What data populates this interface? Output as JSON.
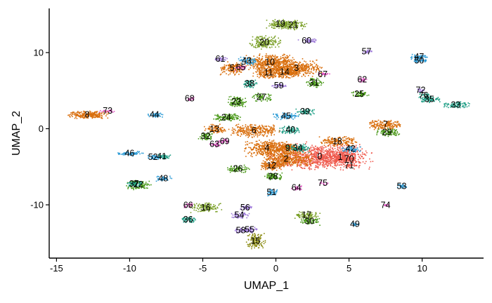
{
  "chart_data": {
    "type": "scatter",
    "xlabel": "UMAP_1",
    "ylabel": "UMAP_2",
    "xlim": [
      -15.5,
      14.2
    ],
    "ylim": [
      -17.0,
      15.8
    ],
    "xticks": [
      -15,
      -10,
      -5,
      0,
      5,
      10
    ],
    "yticks": [
      -10,
      0,
      10
    ],
    "xtick_labels": [
      "-15",
      "-10",
      "-5",
      "0",
      "5",
      "10"
    ],
    "ytick_labels": [
      "-10",
      "0",
      "10"
    ],
    "grid": false,
    "legend": "none",
    "colors": {
      "orange": "#d96f0e",
      "olive": "#7ca12a",
      "green": "#4c9a1c",
      "teal": "#1f9e85",
      "blue": "#2b9bd6",
      "purple": "#9b76d8",
      "magenta": "#e05ac4",
      "red": "#ef5a4e",
      "darkolive": "#8a8a10"
    },
    "clusters": [
      {
        "label": "0",
        "x": 3.0,
        "y": -3.6,
        "color": "red",
        "rx": 3.3,
        "ry": 1.6,
        "n": 900
      },
      {
        "label": "1",
        "x": 4.4,
        "y": -3.7,
        "color": "red",
        "rx": 1.1,
        "ry": 0.8,
        "n": 200
      },
      {
        "label": "2",
        "x": 0.7,
        "y": -3.9,
        "color": "orange",
        "rx": 1.7,
        "ry": 1.0,
        "n": 380
      },
      {
        "label": "3",
        "x": 1.4,
        "y": 8.0,
        "color": "orange",
        "rx": 1.6,
        "ry": 1.0,
        "n": 380
      },
      {
        "label": "4",
        "x": -0.6,
        "y": -2.5,
        "color": "orange",
        "rx": 1.5,
        "ry": 1.0,
        "n": 380
      },
      {
        "label": "5",
        "x": -3.0,
        "y": 8.0,
        "color": "orange",
        "rx": 0.8,
        "ry": 0.8,
        "n": 150
      },
      {
        "label": "6",
        "x": -1.5,
        "y": -0.2,
        "color": "orange",
        "rx": 1.6,
        "ry": 0.8,
        "n": 280
      },
      {
        "label": "7",
        "x": 7.5,
        "y": 0.6,
        "color": "orange",
        "rx": 1.1,
        "ry": 0.6,
        "n": 180
      },
      {
        "label": "8",
        "x": -12.9,
        "y": 1.9,
        "color": "orange",
        "rx": 1.4,
        "ry": 0.45,
        "n": 230
      },
      {
        "label": "9",
        "x": 0.8,
        "y": -2.5,
        "color": "orange",
        "rx": 0.9,
        "ry": 0.7,
        "n": 160
      },
      {
        "label": "10",
        "x": -0.4,
        "y": 8.8,
        "color": "orange",
        "rx": 1.7,
        "ry": 1.0,
        "n": 420
      },
      {
        "label": "11",
        "x": -0.5,
        "y": 7.4,
        "color": "orange",
        "rx": 1.0,
        "ry": 0.7,
        "n": 180
      },
      {
        "label": "12",
        "x": -0.3,
        "y": -4.8,
        "color": "orange",
        "rx": 0.8,
        "ry": 0.6,
        "n": 140
      },
      {
        "label": "13",
        "x": -4.2,
        "y": 0.0,
        "color": "orange",
        "rx": 0.7,
        "ry": 0.6,
        "n": 90
      },
      {
        "label": "14",
        "x": 0.6,
        "y": 7.5,
        "color": "orange",
        "rx": 0.9,
        "ry": 0.7,
        "n": 150
      },
      {
        "label": "15",
        "x": -1.4,
        "y": -14.7,
        "color": "darkolive",
        "rx": 0.6,
        "ry": 1.0,
        "n": 140
      },
      {
        "label": "16",
        "x": -4.8,
        "y": -10.3,
        "color": "olive",
        "rx": 1.0,
        "ry": 0.6,
        "n": 130
      },
      {
        "label": "17",
        "x": 2.1,
        "y": -11.3,
        "color": "olive",
        "rx": 0.8,
        "ry": 0.5,
        "n": 100
      },
      {
        "label": "18",
        "x": 4.2,
        "y": -1.6,
        "color": "orange",
        "rx": 1.2,
        "ry": 0.6,
        "n": 170
      },
      {
        "label": "19",
        "x": 0.3,
        "y": 13.8,
        "color": "olive",
        "rx": 0.9,
        "ry": 0.6,
        "n": 120
      },
      {
        "label": "20",
        "x": -0.8,
        "y": 11.4,
        "color": "olive",
        "rx": 1.0,
        "ry": 0.8,
        "n": 170
      },
      {
        "label": "21",
        "x": 1.2,
        "y": 13.7,
        "color": "olive",
        "rx": 0.8,
        "ry": 0.6,
        "n": 110
      },
      {
        "label": "22",
        "x": -9.4,
        "y": -7.3,
        "color": "green",
        "rx": 0.8,
        "ry": 0.6,
        "n": 120
      },
      {
        "label": "23",
        "x": -2.7,
        "y": 3.6,
        "color": "green",
        "rx": 0.6,
        "ry": 0.7,
        "n": 110
      },
      {
        "label": "24",
        "x": -3.4,
        "y": 1.5,
        "color": "green",
        "rx": 0.9,
        "ry": 0.5,
        "n": 120
      },
      {
        "label": "25",
        "x": 5.7,
        "y": 4.6,
        "color": "green",
        "rx": 0.6,
        "ry": 0.4,
        "n": 60
      },
      {
        "label": "26",
        "x": -2.6,
        "y": -5.2,
        "color": "green",
        "rx": 0.7,
        "ry": 0.5,
        "n": 80
      },
      {
        "label": "27",
        "x": -1.0,
        "y": 4.2,
        "color": "green",
        "rx": 0.6,
        "ry": 0.5,
        "n": 70
      },
      {
        "label": "28",
        "x": -0.2,
        "y": -6.2,
        "color": "green",
        "rx": 0.6,
        "ry": 0.5,
        "n": 80
      },
      {
        "label": "29",
        "x": 7.6,
        "y": -0.4,
        "color": "green",
        "rx": 0.8,
        "ry": 0.5,
        "n": 90
      },
      {
        "label": "30",
        "x": 2.3,
        "y": -12.1,
        "color": "green",
        "rx": 0.7,
        "ry": 0.4,
        "n": 70
      },
      {
        "label": "31",
        "x": 2.6,
        "y": 6.1,
        "color": "green",
        "rx": 0.6,
        "ry": 0.6,
        "n": 80
      },
      {
        "label": "32",
        "x": -4.8,
        "y": -0.9,
        "color": "green",
        "rx": 0.5,
        "ry": 0.5,
        "n": 60
      },
      {
        "label": "33",
        "x": 12.3,
        "y": 3.2,
        "color": "teal",
        "rx": 0.9,
        "ry": 0.4,
        "n": 80
      },
      {
        "label": "34",
        "x": 1.5,
        "y": -2.5,
        "color": "teal",
        "rx": 0.7,
        "ry": 0.5,
        "n": 80
      },
      {
        "label": "35",
        "x": 10.5,
        "y": 3.9,
        "color": "teal",
        "rx": 0.7,
        "ry": 0.4,
        "n": 70
      },
      {
        "label": "36",
        "x": -6.0,
        "y": -11.9,
        "color": "teal",
        "rx": 0.5,
        "ry": 0.4,
        "n": 50
      },
      {
        "label": "37",
        "x": -9.7,
        "y": -7.2,
        "color": "teal",
        "rx": 0.5,
        "ry": 0.4,
        "n": 50
      },
      {
        "label": "38",
        "x": -1.8,
        "y": 6.0,
        "color": "teal",
        "rx": 0.5,
        "ry": 0.5,
        "n": 60
      },
      {
        "label": "39",
        "x": 2.0,
        "y": 2.3,
        "color": "teal",
        "rx": 0.6,
        "ry": 0.4,
        "n": 60
      },
      {
        "label": "40",
        "x": 1.0,
        "y": -0.1,
        "color": "teal",
        "rx": 0.7,
        "ry": 0.5,
        "n": 70
      },
      {
        "label": "41",
        "x": -7.8,
        "y": -3.6,
        "color": "teal",
        "rx": 0.6,
        "ry": 0.3,
        "n": 50
      },
      {
        "label": "42",
        "x": 5.1,
        "y": -2.6,
        "color": "blue",
        "rx": 0.6,
        "ry": 0.5,
        "n": 60
      },
      {
        "label": "43",
        "x": -2.0,
        "y": 9.0,
        "color": "blue",
        "rx": 0.6,
        "ry": 0.5,
        "n": 60
      },
      {
        "label": "44",
        "x": -8.3,
        "y": 1.9,
        "color": "blue",
        "rx": 0.5,
        "ry": 0.3,
        "n": 40
      },
      {
        "label": "45",
        "x": 0.7,
        "y": 1.7,
        "color": "blue",
        "rx": 0.9,
        "ry": 0.4,
        "n": 70
      },
      {
        "label": "46",
        "x": -10.0,
        "y": -3.2,
        "color": "blue",
        "rx": 0.9,
        "ry": 0.3,
        "n": 60
      },
      {
        "label": "47",
        "x": 9.8,
        "y": 9.5,
        "color": "blue",
        "rx": 0.6,
        "ry": 0.3,
        "n": 45
      },
      {
        "label": "48",
        "x": -7.7,
        "y": -6.5,
        "color": "blue",
        "rx": 0.5,
        "ry": 0.3,
        "n": 40
      },
      {
        "label": "49",
        "x": 5.4,
        "y": -12.5,
        "color": "blue",
        "rx": 0.3,
        "ry": 0.2,
        "n": 20
      },
      {
        "label": "50",
        "x": 9.8,
        "y": 9.0,
        "color": "blue",
        "rx": 0.5,
        "ry": 0.3,
        "n": 40
      },
      {
        "label": "51",
        "x": -0.3,
        "y": -8.3,
        "color": "blue",
        "rx": 0.4,
        "ry": 0.4,
        "n": 40
      },
      {
        "label": "52",
        "x": -8.4,
        "y": -3.7,
        "color": "blue",
        "rx": 0.5,
        "ry": 0.3,
        "n": 40
      },
      {
        "label": "53",
        "x": 8.6,
        "y": -7.5,
        "color": "blue",
        "rx": 0.3,
        "ry": 0.3,
        "n": 25
      },
      {
        "label": "54",
        "x": -2.5,
        "y": -11.3,
        "color": "purple",
        "rx": 0.6,
        "ry": 0.4,
        "n": 50
      },
      {
        "label": "55",
        "x": -1.8,
        "y": -13.2,
        "color": "purple",
        "rx": 0.5,
        "ry": 0.4,
        "n": 40
      },
      {
        "label": "56",
        "x": -2.1,
        "y": -10.3,
        "color": "purple",
        "rx": 0.4,
        "ry": 0.3,
        "n": 30
      },
      {
        "label": "57",
        "x": 6.2,
        "y": 10.2,
        "color": "purple",
        "rx": 0.3,
        "ry": 0.2,
        "n": 20
      },
      {
        "label": "58",
        "x": -2.4,
        "y": -13.3,
        "color": "purple",
        "rx": 0.4,
        "ry": 0.3,
        "n": 30
      },
      {
        "label": "59",
        "x": 0.2,
        "y": 5.7,
        "color": "purple",
        "rx": 0.5,
        "ry": 0.3,
        "n": 35
      },
      {
        "label": "60",
        "x": 2.1,
        "y": 11.6,
        "color": "purple",
        "rx": 0.6,
        "ry": 0.3,
        "n": 35
      },
      {
        "label": "61",
        "x": -3.8,
        "y": 9.2,
        "color": "purple",
        "rx": 0.5,
        "ry": 0.3,
        "n": 30
      },
      {
        "label": "62",
        "x": 5.9,
        "y": 6.5,
        "color": "magenta",
        "rx": 0.3,
        "ry": 0.3,
        "n": 20
      },
      {
        "label": "63",
        "x": -4.2,
        "y": -2.0,
        "color": "magenta",
        "rx": 0.4,
        "ry": 0.3,
        "n": 25
      },
      {
        "label": "64",
        "x": 1.4,
        "y": -7.7,
        "color": "magenta",
        "rx": 0.4,
        "ry": 0.3,
        "n": 25
      },
      {
        "label": "65",
        "x": -2.4,
        "y": 8.1,
        "color": "magenta",
        "rx": 0.4,
        "ry": 0.4,
        "n": 30
      },
      {
        "label": "66",
        "x": -6.0,
        "y": -10.0,
        "color": "magenta",
        "rx": 0.3,
        "ry": 0.3,
        "n": 20
      },
      {
        "label": "67",
        "x": 3.2,
        "y": 7.2,
        "color": "magenta",
        "rx": 0.4,
        "ry": 0.3,
        "n": 25
      },
      {
        "label": "68",
        "x": -5.9,
        "y": 4.0,
        "color": "magenta",
        "rx": 0.3,
        "ry": 0.2,
        "n": 15
      },
      {
        "label": "69",
        "x": -3.5,
        "y": -1.6,
        "color": "magenta",
        "rx": 0.4,
        "ry": 0.3,
        "n": 25
      },
      {
        "label": "70",
        "x": 5.0,
        "y": -3.9,
        "color": "red",
        "rx": 0.4,
        "ry": 0.3,
        "n": 30
      },
      {
        "label": "71",
        "x": 5.0,
        "y": -4.8,
        "color": "red",
        "rx": 0.3,
        "ry": 0.2,
        "n": 20
      },
      {
        "label": "72",
        "x": 9.9,
        "y": 5.1,
        "color": "purple",
        "rx": 0.3,
        "ry": 0.2,
        "n": 15
      },
      {
        "label": "73",
        "x": -11.5,
        "y": 2.4,
        "color": "magenta",
        "rx": 0.6,
        "ry": 0.2,
        "n": 25
      },
      {
        "label": "74",
        "x": 7.5,
        "y": -10.0,
        "color": "magenta",
        "rx": 0.2,
        "ry": 0.2,
        "n": 10
      },
      {
        "label": "75",
        "x": 3.2,
        "y": -7.1,
        "color": "magenta",
        "rx": 0.3,
        "ry": 0.2,
        "n": 12
      },
      {
        "label": "76",
        "x": 10.1,
        "y": 4.4,
        "color": "teal",
        "rx": 0.4,
        "ry": 0.3,
        "n": 25
      }
    ],
    "cluster_label_offsets": {
      "note": "labels drawn at cluster centers"
    }
  }
}
